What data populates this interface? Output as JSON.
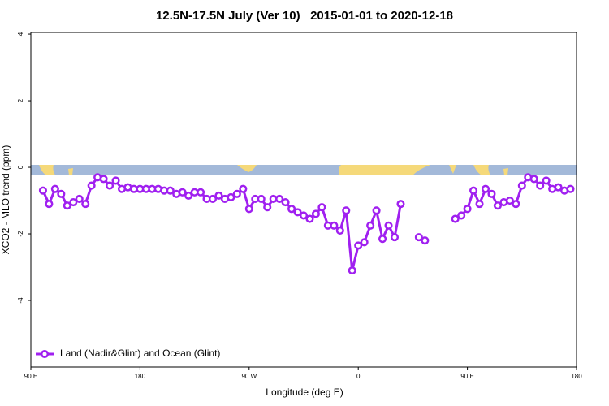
{
  "chart_data": {
    "type": "line",
    "title": "12.5N-17.5N July (Ver 10)   2015-01-01 to 2020-12-18",
    "xlabel": "Longitude (deg E)",
    "ylabel": "XCO2 - MLO trend (ppm)",
    "xlim": [
      90,
      540
    ],
    "ylim": [
      -6,
      4.05
    ],
    "xticks": [
      {
        "value": 90,
        "label": "90 E"
      },
      180,
      {
        "value": 270,
        "label": "90 W"
      },
      {
        "value": 360,
        "label": "0"
      },
      {
        "value": 450,
        "label": "90 E"
      },
      {
        "value": 540,
        "label": "180"
      }
    ],
    "yticks": [
      4,
      2,
      0,
      -2,
      -4
    ],
    "legend": "bottom-left",
    "x": [
      100,
      105,
      110,
      115,
      120,
      125,
      130,
      135,
      140,
      145,
      150,
      155,
      160,
      165,
      170,
      175,
      180,
      185,
      190,
      195,
      200,
      205,
      210,
      215,
      220,
      225,
      230,
      235,
      240,
      245,
      250,
      255,
      260,
      265,
      270,
      275,
      280,
      285,
      290,
      295,
      300,
      305,
      310,
      315,
      320,
      325,
      330,
      335,
      340,
      345,
      350,
      355,
      360,
      365,
      370,
      375,
      380,
      385,
      390,
      395,
      400,
      405,
      410,
      415,
      420,
      425,
      430,
      435,
      440,
      445,
      450,
      455,
      460,
      465,
      470,
      475,
      480,
      485,
      490,
      495,
      500,
      505,
      510,
      515,
      520,
      525,
      530,
      535
    ],
    "series": [
      {
        "name": "Land (Nadir&Glint) and Ocean (Glint)",
        "color": "#a020f0",
        "values": [
          -0.7,
          -1.1,
          -0.65,
          -0.8,
          -1.15,
          -1.05,
          -0.95,
          -1.1,
          -0.55,
          -0.3,
          -0.35,
          -0.55,
          -0.4,
          -0.65,
          -0.6,
          -0.65,
          -0.65,
          -0.65,
          -0.65,
          -0.65,
          -0.7,
          -0.7,
          -0.8,
          -0.75,
          -0.85,
          -0.75,
          -0.75,
          -0.95,
          -0.95,
          -0.85,
          -0.95,
          -0.9,
          -0.8,
          -0.65,
          -1.25,
          -0.95,
          -0.95,
          -1.2,
          -0.95,
          -0.95,
          -1.05,
          -1.25,
          -1.35,
          -1.45,
          -1.55,
          -1.4,
          -1.2,
          -1.75,
          -1.75,
          -1.9,
          -1.3,
          -3.1,
          -2.35,
          -2.25,
          -1.75,
          -1.3,
          -2.15,
          -1.75,
          -2.1,
          -1.1,
          null,
          null,
          -2.1,
          -2.2,
          null,
          null,
          null,
          null,
          -1.55,
          -1.45,
          -1.25,
          -0.7,
          -1.1,
          -0.65,
          -0.8,
          -1.15,
          -1.05,
          -1.0,
          -1.1,
          -0.55,
          -0.3,
          -0.35,
          -0.55,
          -0.4,
          -0.65,
          -0.6,
          -0.7,
          -0.65
        ]
      }
    ]
  }
}
